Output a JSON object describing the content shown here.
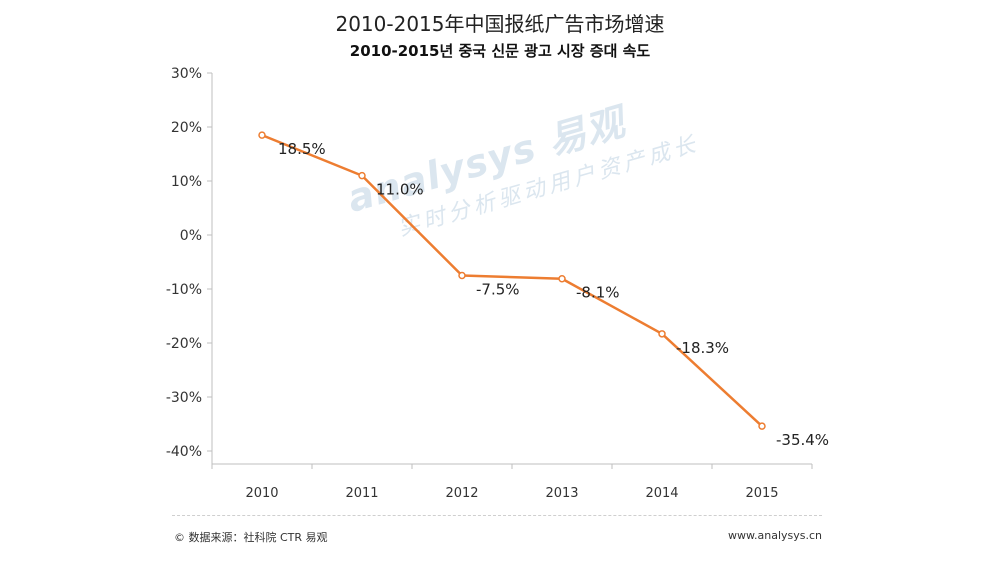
{
  "header": {
    "title": "2010-2015年中国报纸广告市场增速",
    "subtitle": "2010-2015년 중국 신문 광고 시장 증대 속도"
  },
  "watermark": {
    "brand": "analysys 易观",
    "slogan": "实时分析驱动用户资产成长"
  },
  "footer": {
    "source": "© 数据来源：社科院 CTR 易观",
    "website": "www.analysys.cn"
  },
  "colors": {
    "line": "#ED7D31",
    "axis": "#bfbfbf",
    "text": "#222222"
  },
  "chart_data": {
    "type": "line",
    "title": "2010-2015年中国报纸广告市场增速",
    "subtitle": "2010-2015년 중국 신문 광고 시장 증대 속도",
    "xlabel": "",
    "ylabel": "",
    "categories": [
      "2010",
      "2011",
      "2012",
      "2013",
      "2014",
      "2015"
    ],
    "series": [
      {
        "name": "报纸广告市场增速",
        "values": [
          18.5,
          11.0,
          -7.5,
          -8.1,
          -18.3,
          -35.4
        ],
        "labels": [
          "18.5%",
          "11.0%",
          "-7.5%",
          "-8.1%",
          "-18.3%",
          "-35.4%"
        ]
      }
    ],
    "ylim": [
      -40,
      30
    ],
    "yticks": [
      30,
      20,
      10,
      0,
      -10,
      -20,
      -30,
      -40
    ],
    "ytick_labels": [
      "30%",
      "20%",
      "10%",
      "0%",
      "-10%",
      "-20%",
      "-30%",
      "-40%"
    ],
    "grid": false,
    "legend": "none"
  }
}
